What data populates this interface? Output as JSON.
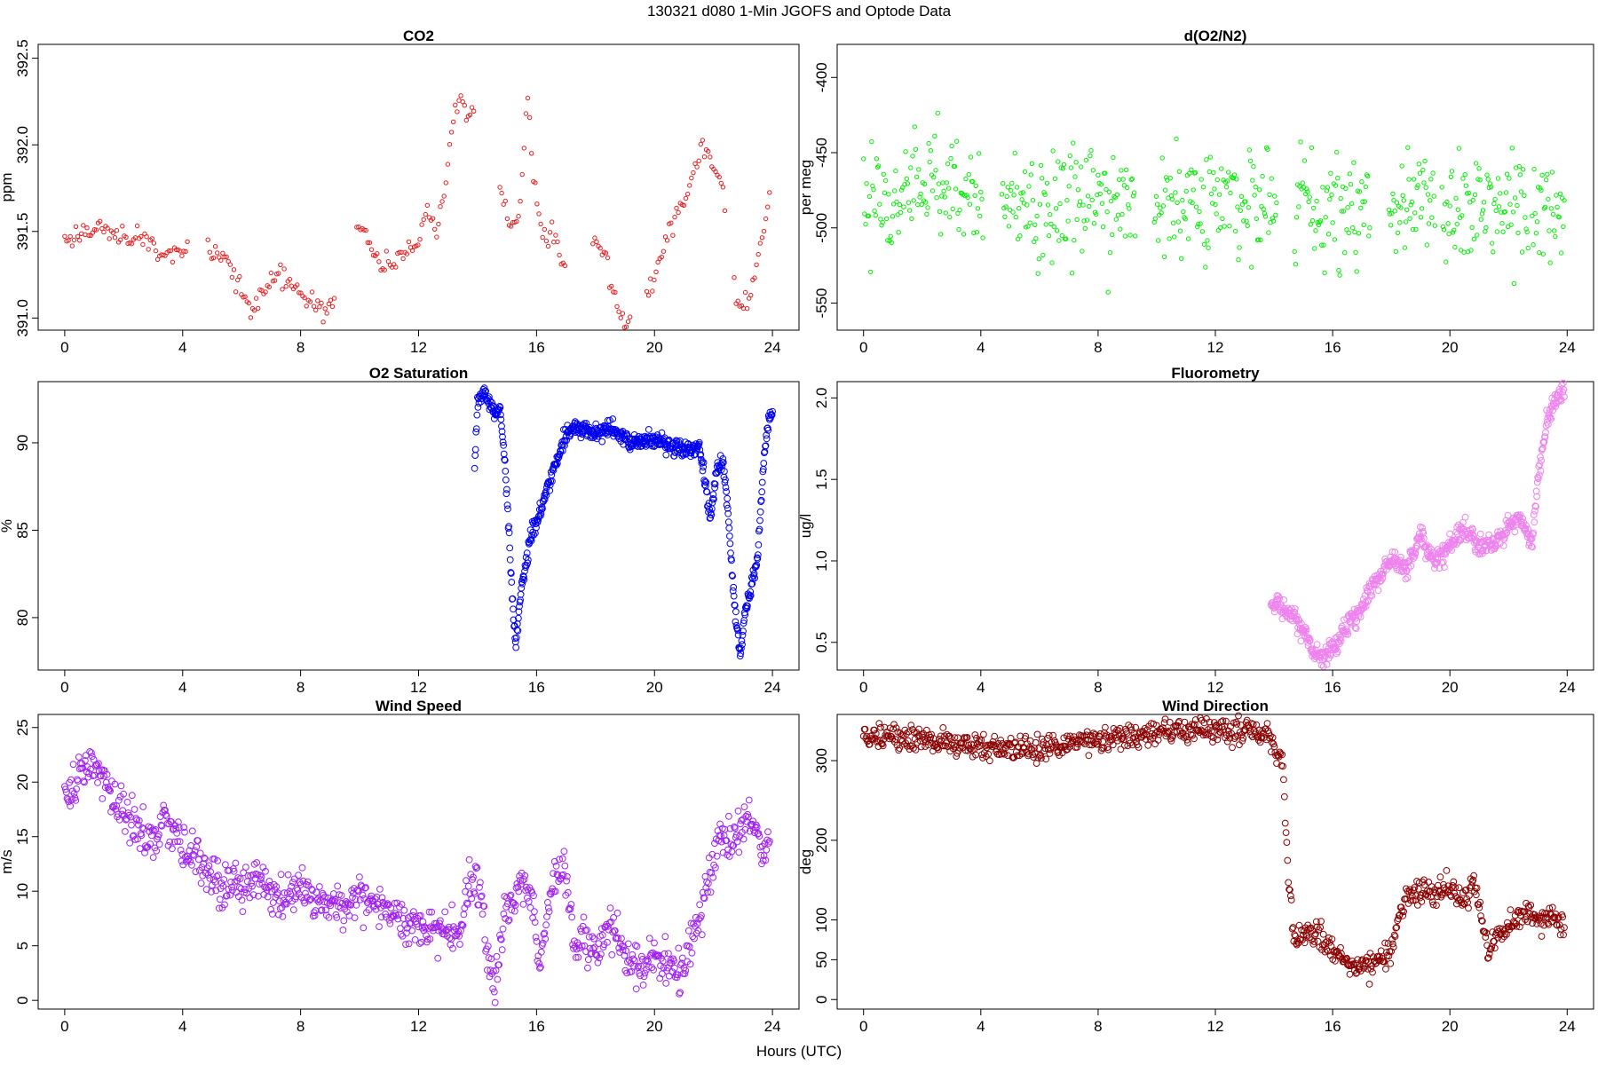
{
  "figure": {
    "title": "130321   d080   1-Min  JGOFS and Optode Data",
    "xlabel": "Hours (UTC)"
  },
  "chart_data": [
    {
      "id": "co2",
      "type": "scatter",
      "title": "CO2",
      "ylabel": "ppm",
      "xlim": [
        -0.9,
        24.9
      ],
      "ylim": [
        390.93,
        392.58
      ],
      "xticks": [
        0,
        4,
        8,
        12,
        16,
        20,
        24
      ],
      "yticks": [
        391.0,
        391.5,
        392.0,
        392.5
      ],
      "ytick_labels": [
        "391.0",
        "391.5",
        "392.0",
        "392.5"
      ],
      "color": "#e41a1c",
      "marker_size": "small",
      "anchors": [
        [
          0.0,
          391.45
        ],
        [
          0.5,
          391.49
        ],
        [
          1.0,
          391.52
        ],
        [
          1.5,
          391.5
        ],
        [
          2.0,
          391.48
        ],
        [
          2.5,
          391.45
        ],
        [
          3.0,
          391.43
        ],
        [
          3.2,
          391.33
        ],
        [
          3.5,
          391.35
        ],
        [
          3.8,
          391.4
        ],
        [
          4.1,
          391.36
        ],
        [
          4.9,
          391.39
        ],
        [
          5.3,
          391.35
        ],
        [
          5.8,
          391.22
        ],
        [
          6.1,
          391.1
        ],
        [
          6.4,
          391.05
        ],
        [
          6.8,
          391.15
        ],
        [
          7.2,
          391.25
        ],
        [
          7.6,
          391.2
        ],
        [
          8.1,
          391.12
        ],
        [
          8.6,
          391.05
        ],
        [
          9.1,
          391.08
        ],
        [
          10.0,
          391.55
        ],
        [
          10.4,
          391.4
        ],
        [
          10.8,
          391.3
        ],
        [
          11.2,
          391.32
        ],
        [
          11.6,
          391.38
        ],
        [
          12.0,
          391.45
        ],
        [
          12.3,
          391.65
        ],
        [
          12.6,
          391.5
        ],
        [
          12.9,
          391.75
        ],
        [
          13.1,
          392.1
        ],
        [
          13.4,
          392.3
        ],
        [
          13.7,
          392.15
        ],
        [
          14.1,
          392.25
        ],
        [
          14.8,
          391.7
        ],
        [
          15.1,
          391.5
        ],
        [
          15.4,
          391.55
        ],
        [
          15.7,
          392.3
        ],
        [
          15.9,
          391.8
        ],
        [
          16.2,
          391.45
        ],
        [
          16.6,
          391.5
        ],
        [
          16.9,
          391.3
        ],
        [
          18.0,
          391.45
        ],
        [
          18.4,
          391.3
        ],
        [
          18.8,
          391.05
        ],
        [
          19.1,
          391.0
        ],
        [
          19.8,
          391.15
        ],
        [
          20.2,
          391.35
        ],
        [
          20.6,
          391.55
        ],
        [
          21.0,
          391.65
        ],
        [
          21.4,
          391.9
        ],
        [
          21.7,
          392.0
        ],
        [
          22.0,
          391.9
        ],
        [
          22.3,
          391.75
        ],
        [
          22.8,
          391.05
        ],
        [
          23.2,
          391.1
        ],
        [
          23.6,
          391.4
        ],
        [
          23.9,
          391.7
        ]
      ],
      "gaps": [
        [
          4.2,
          4.8
        ],
        [
          9.2,
          9.9
        ],
        [
          13.9,
          14.3
        ],
        [
          14.3,
          14.7
        ],
        [
          17.0,
          17.9
        ],
        [
          19.2,
          19.7
        ],
        [
          22.4,
          22.7
        ]
      ],
      "noise": 0.03,
      "n_points": 380
    },
    {
      "id": "d_o2_n2",
      "type": "scatter",
      "title": "d(O2/N2)",
      "ylabel": "per meg",
      "xlim": [
        -0.9,
        24.9
      ],
      "ylim": [
        -568,
        -378
      ],
      "xticks": [
        0,
        4,
        8,
        12,
        16,
        20,
        24
      ],
      "yticks": [
        -550,
        -500,
        -450,
        -400
      ],
      "ytick_labels": [
        "-550",
        "-500",
        "-450",
        "-400"
      ],
      "color": "#00ee00",
      "marker_size": "small",
      "anchors": [
        [
          0.0,
          -476
        ],
        [
          4.0,
          -476
        ],
        [
          4.8,
          -483
        ],
        [
          9.2,
          -483
        ],
        [
          10.0,
          -482
        ],
        [
          14.0,
          -482
        ],
        [
          14.8,
          -485
        ],
        [
          17.2,
          -485
        ],
        [
          18.0,
          -484
        ],
        [
          19.4,
          -484
        ],
        [
          19.8,
          -488
        ],
        [
          22.6,
          -488
        ],
        [
          22.9,
          -493
        ],
        [
          23.9,
          -493
        ]
      ],
      "gaps": [
        [
          4.1,
          4.7
        ],
        [
          9.3,
          9.9
        ],
        [
          14.1,
          14.7
        ],
        [
          17.3,
          17.9
        ],
        [
          19.5,
          19.7
        ],
        [
          22.7,
          22.8
        ]
      ],
      "noise": 18,
      "n_points": 700
    },
    {
      "id": "o2_saturation",
      "type": "scatter",
      "title": "O2 Saturation",
      "ylabel": "%",
      "xlim": [
        -0.9,
        24.9
      ],
      "ylim": [
        77.0,
        93.5
      ],
      "xticks": [
        0,
        4,
        8,
        12,
        16,
        20,
        24
      ],
      "yticks": [
        80,
        85,
        90
      ],
      "ytick_labels": [
        "80",
        "85",
        "90"
      ],
      "color": "#0000ee",
      "marker_size": "large",
      "anchors": [
        [
          13.9,
          88.8
        ],
        [
          14.0,
          92.5
        ],
        [
          14.2,
          92.8
        ],
        [
          14.5,
          92.0
        ],
        [
          14.8,
          91.5
        ],
        [
          15.0,
          87.0
        ],
        [
          15.2,
          80.5
        ],
        [
          15.3,
          78.5
        ],
        [
          15.5,
          82.0
        ],
        [
          15.8,
          84.5
        ],
        [
          16.1,
          86.0
        ],
        [
          16.4,
          87.5
        ],
        [
          16.7,
          89.0
        ],
        [
          17.0,
          90.5
        ],
        [
          17.3,
          91.0
        ],
        [
          17.8,
          90.5
        ],
        [
          18.5,
          90.8
        ],
        [
          19.2,
          90.0
        ],
        [
          19.8,
          90.2
        ],
        [
          20.5,
          89.8
        ],
        [
          21.0,
          89.5
        ],
        [
          21.5,
          89.8
        ],
        [
          21.7,
          88.0
        ],
        [
          21.9,
          85.5
        ],
        [
          22.1,
          88.5
        ],
        [
          22.3,
          89.0
        ],
        [
          22.5,
          86.0
        ],
        [
          22.7,
          81.0
        ],
        [
          22.9,
          77.8
        ],
        [
          23.1,
          80.5
        ],
        [
          23.5,
          83.5
        ],
        [
          23.7,
          89.0
        ],
        [
          23.9,
          91.8
        ],
        [
          24.0,
          91.5
        ]
      ],
      "gaps": [],
      "noise": 0.25,
      "n_points": 620
    },
    {
      "id": "fluorometry",
      "type": "scatter",
      "title": "Fluorometry",
      "ylabel": "ug/l",
      "xlim": [
        -0.9,
        24.9
      ],
      "ylim": [
        0.33,
        2.1
      ],
      "xticks": [
        0,
        4,
        8,
        12,
        16,
        20,
        24
      ],
      "yticks": [
        0.5,
        1.0,
        1.5,
        2.0
      ],
      "ytick_labels": [
        "0.5",
        "1.0",
        "1.5",
        "2.0"
      ],
      "color": "#ee82ee",
      "marker_size": "large",
      "anchors": [
        [
          13.9,
          0.75
        ],
        [
          14.5,
          0.68
        ],
        [
          15.0,
          0.58
        ],
        [
          15.3,
          0.45
        ],
        [
          15.6,
          0.4
        ],
        [
          16.0,
          0.48
        ],
        [
          16.5,
          0.6
        ],
        [
          17.0,
          0.7
        ],
        [
          17.5,
          0.9
        ],
        [
          18.0,
          1.0
        ],
        [
          18.5,
          0.95
        ],
        [
          19.0,
          1.15
        ],
        [
          19.5,
          1.0
        ],
        [
          20.0,
          1.08
        ],
        [
          20.5,
          1.18
        ],
        [
          21.0,
          1.1
        ],
        [
          21.5,
          1.1
        ],
        [
          22.0,
          1.2
        ],
        [
          22.4,
          1.25
        ],
        [
          22.8,
          1.1
        ],
        [
          23.0,
          1.5
        ],
        [
          23.3,
          1.85
        ],
        [
          23.6,
          2.0
        ],
        [
          23.9,
          2.05
        ]
      ],
      "gaps": [],
      "noise": 0.03,
      "n_points": 600
    },
    {
      "id": "wind_speed",
      "type": "scatter",
      "title": "Wind Speed",
      "ylabel": "m/s",
      "xlim": [
        -0.9,
        24.9
      ],
      "ylim": [
        -0.8,
        26.2
      ],
      "xticks": [
        0,
        4,
        8,
        12,
        16,
        20,
        24
      ],
      "yticks": [
        0,
        5,
        10,
        15,
        20,
        25
      ],
      "ytick_labels": [
        "0",
        "5",
        "10",
        "15",
        "20",
        "25"
      ],
      "color": "#a020f0",
      "marker_size": "large",
      "anchors": [
        [
          0.0,
          18.5
        ],
        [
          0.4,
          20.0
        ],
        [
          0.8,
          21.5
        ],
        [
          1.2,
          20.5
        ],
        [
          1.6,
          18.5
        ],
        [
          2.0,
          17.0
        ],
        [
          2.6,
          15.5
        ],
        [
          3.0,
          14.5
        ],
        [
          3.5,
          16.5
        ],
        [
          4.0,
          14.0
        ],
        [
          4.5,
          13.0
        ],
        [
          5.0,
          11.5
        ],
        [
          5.5,
          10.5
        ],
        [
          6.0,
          10.0
        ],
        [
          6.5,
          11.5
        ],
        [
          7.0,
          9.5
        ],
        [
          7.5,
          9.0
        ],
        [
          8.0,
          10.5
        ],
        [
          8.5,
          9.5
        ],
        [
          9.0,
          9.0
        ],
        [
          9.5,
          8.5
        ],
        [
          10.0,
          9.5
        ],
        [
          10.5,
          8.5
        ],
        [
          11.0,
          8.0
        ],
        [
          11.5,
          7.5
        ],
        [
          12.0,
          6.5
        ],
        [
          12.5,
          7.0
        ],
        [
          13.0,
          6.5
        ],
        [
          13.4,
          6.0
        ],
        [
          13.7,
          10.0
        ],
        [
          14.0,
          11.0
        ],
        [
          14.2,
          9.0
        ],
        [
          14.4,
          2.0
        ],
        [
          14.6,
          2.5
        ],
        [
          14.9,
          8.0
        ],
        [
          15.2,
          9.5
        ],
        [
          15.6,
          11.0
        ],
        [
          15.9,
          8.0
        ],
        [
          16.1,
          3.5
        ],
        [
          16.4,
          8.0
        ],
        [
          16.7,
          12.0
        ],
        [
          17.0,
          11.0
        ],
        [
          17.3,
          5.0
        ],
        [
          17.6,
          6.0
        ],
        [
          18.0,
          5.0
        ],
        [
          18.5,
          7.0
        ],
        [
          19.0,
          4.0
        ],
        [
          19.5,
          3.5
        ],
        [
          20.0,
          4.0
        ],
        [
          20.5,
          3.5
        ],
        [
          20.8,
          2.0
        ],
        [
          21.0,
          2.5
        ],
        [
          21.3,
          6.0
        ],
        [
          21.6,
          8.0
        ],
        [
          21.9,
          12.0
        ],
        [
          22.2,
          15.0
        ],
        [
          22.5,
          14.0
        ],
        [
          22.8,
          15.5
        ],
        [
          23.1,
          17.0
        ],
        [
          23.4,
          16.0
        ],
        [
          23.7,
          13.0
        ],
        [
          23.9,
          16.0
        ]
      ],
      "gaps": [],
      "noise": 1.0,
      "n_points": 900
    },
    {
      "id": "wind_direction",
      "type": "scatter",
      "title": "Wind Direction",
      "ylabel": "deg",
      "xlim": [
        -0.9,
        24.9
      ],
      "ylim": [
        -12,
        358
      ],
      "xticks": [
        0,
        4,
        8,
        12,
        16,
        20,
        24
      ],
      "yticks": [
        0,
        50,
        100,
        200,
        300
      ],
      "ytick_labels": [
        "0",
        "50",
        "100",
        "200",
        "300"
      ],
      "color": "#8b0000",
      "marker_size": "large",
      "anchors": [
        [
          0.0,
          330
        ],
        [
          1.0,
          328
        ],
        [
          2.0,
          326
        ],
        [
          3.0,
          322
        ],
        [
          4.0,
          318
        ],
        [
          5.0,
          316
        ],
        [
          6.0,
          314
        ],
        [
          7.0,
          320
        ],
        [
          8.0,
          326
        ],
        [
          9.0,
          330
        ],
        [
          10.0,
          334
        ],
        [
          11.0,
          336
        ],
        [
          12.0,
          338
        ],
        [
          13.0,
          340
        ],
        [
          13.5,
          335
        ],
        [
          13.8,
          330
        ],
        [
          14.0,
          320
        ],
        [
          14.3,
          290
        ],
        [
          14.5,
          150
        ],
        [
          14.7,
          70
        ],
        [
          15.0,
          85
        ],
        [
          15.5,
          80
        ],
        [
          16.0,
          60
        ],
        [
          16.5,
          45
        ],
        [
          17.0,
          40
        ],
        [
          17.5,
          50
        ],
        [
          18.0,
          60
        ],
        [
          18.3,
          110
        ],
        [
          18.6,
          140
        ],
        [
          19.0,
          135
        ],
        [
          19.5,
          130
        ],
        [
          20.0,
          140
        ],
        [
          20.5,
          120
        ],
        [
          20.8,
          150
        ],
        [
          21.0,
          120
        ],
        [
          21.3,
          60
        ],
        [
          21.6,
          80
        ],
        [
          22.0,
          90
        ],
        [
          22.5,
          110
        ],
        [
          23.0,
          100
        ],
        [
          23.5,
          105
        ],
        [
          23.9,
          90
        ]
      ],
      "gaps": [],
      "noise": 8,
      "n_points": 900
    }
  ]
}
